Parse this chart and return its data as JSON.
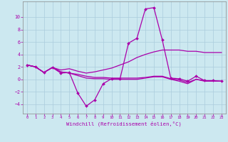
{
  "xlabel": "Windchill (Refroidissement éolien,°C)",
  "background_color": "#cce8f0",
  "grid_color": "#aaccdd",
  "line_color": "#aa00aa",
  "xlim": [
    -0.5,
    23.5
  ],
  "ylim": [
    -5.5,
    12.5
  ],
  "xticks": [
    0,
    1,
    2,
    3,
    4,
    5,
    6,
    7,
    8,
    9,
    10,
    11,
    12,
    13,
    14,
    15,
    16,
    17,
    18,
    19,
    20,
    21,
    22,
    23
  ],
  "yticks": [
    -4,
    -2,
    0,
    2,
    4,
    6,
    8,
    10
  ],
  "line1_x": [
    0,
    1,
    2,
    3,
    4,
    5,
    6,
    7,
    8,
    9,
    10,
    11,
    12,
    13,
    14,
    15,
    16,
    17,
    18,
    19,
    20,
    21,
    22,
    23
  ],
  "line1_y": [
    2.3,
    2.0,
    1.1,
    1.9,
    1.0,
    1.1,
    -2.2,
    -4.3,
    -3.3,
    -0.7,
    0.1,
    0.1,
    5.8,
    6.6,
    11.3,
    11.5,
    6.3,
    0.2,
    0.1,
    -0.3,
    0.5,
    -0.2,
    -0.2,
    -0.3
  ],
  "line2_x": [
    0,
    1,
    2,
    3,
    4,
    5,
    6,
    7,
    8,
    9,
    10,
    11,
    12,
    13,
    14,
    15,
    16,
    17,
    18,
    19,
    20,
    21,
    22,
    23
  ],
  "line2_y": [
    2.3,
    2.0,
    1.1,
    1.9,
    1.5,
    1.7,
    1.3,
    1.0,
    1.2,
    1.5,
    1.8,
    2.3,
    2.8,
    3.5,
    4.0,
    4.4,
    4.7,
    4.7,
    4.7,
    4.5,
    4.5,
    4.3,
    4.3,
    4.3
  ],
  "line3_x": [
    0,
    1,
    2,
    3,
    4,
    5,
    6,
    7,
    8,
    9,
    10,
    11,
    12,
    13,
    14,
    15,
    16,
    17,
    18,
    19,
    20,
    21,
    22,
    23
  ],
  "line3_y": [
    2.3,
    2.0,
    1.1,
    1.9,
    1.2,
    1.0,
    0.6,
    0.2,
    0.1,
    0.1,
    0.0,
    0.0,
    0.0,
    0.0,
    0.2,
    0.4,
    0.4,
    0.0,
    -0.3,
    -0.7,
    0.0,
    -0.3,
    -0.3,
    -0.3
  ],
  "line4_x": [
    0,
    1,
    2,
    3,
    4,
    5,
    6,
    7,
    8,
    9,
    10,
    11,
    12,
    13,
    14,
    15,
    16,
    17,
    18,
    19,
    20,
    21,
    22,
    23
  ],
  "line4_y": [
    2.3,
    2.0,
    1.1,
    1.9,
    1.2,
    1.0,
    0.8,
    0.5,
    0.3,
    0.3,
    0.2,
    0.2,
    0.2,
    0.2,
    0.3,
    0.5,
    0.5,
    0.1,
    -0.1,
    -0.5,
    0.0,
    -0.2,
    -0.3,
    -0.3
  ]
}
